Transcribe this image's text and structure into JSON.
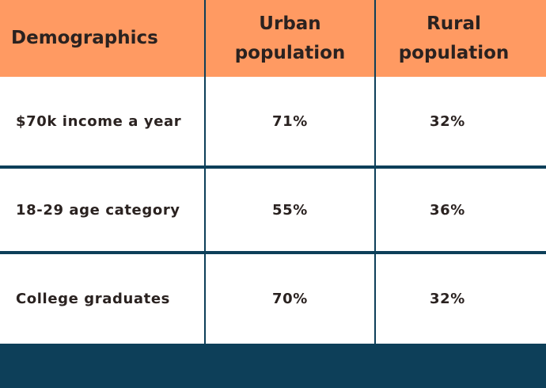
{
  "chart_data": {
    "type": "table",
    "columns": [
      "Demographics",
      "Urban population",
      "Rural population"
    ],
    "rows": [
      [
        "$70k income a year",
        "71%",
        "32%"
      ],
      [
        "18-29 age category",
        "55%",
        "36%"
      ],
      [
        "College graduates",
        "70%",
        "32%"
      ]
    ]
  },
  "colors": {
    "header_bg": "#ff9a62",
    "rule": "#0d3f59",
    "text": "#2a2220"
  }
}
